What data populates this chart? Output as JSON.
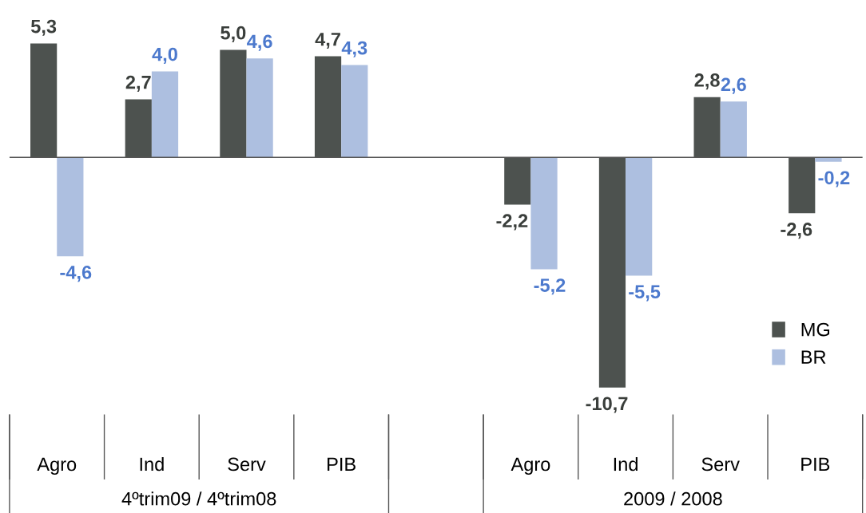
{
  "chart_data": {
    "type": "bar",
    "categories": [
      "Agro",
      "Ind",
      "Serv",
      "PIB",
      null,
      "Agro",
      "Ind",
      "Serv",
      "PIB"
    ],
    "series": [
      {
        "name": "MG",
        "color": "#4d524f",
        "values": [
          5.3,
          2.7,
          5.0,
          4.7,
          null,
          -2.2,
          -10.7,
          2.8,
          -2.6
        ],
        "value_labels": [
          "5,3",
          "2,7",
          "5,0",
          "4,7",
          null,
          "-2,2",
          "-10,7",
          "2,8",
          "-2,6"
        ]
      },
      {
        "name": "BR",
        "color": "#adbfe0",
        "values": [
          -4.6,
          4.0,
          4.6,
          4.3,
          null,
          -5.2,
          -5.5,
          2.6,
          -0.2
        ],
        "value_labels": [
          "-4,6",
          "4,0",
          "4,6",
          "4,3",
          null,
          "-5,2",
          "-5,5",
          "2,6",
          "-0,2"
        ]
      }
    ],
    "annotations": [
      "4ºtrim09 / 4ºtrim08",
      "2009 / 2008"
    ],
    "legend": "bottom right",
    "grid": false
  }
}
